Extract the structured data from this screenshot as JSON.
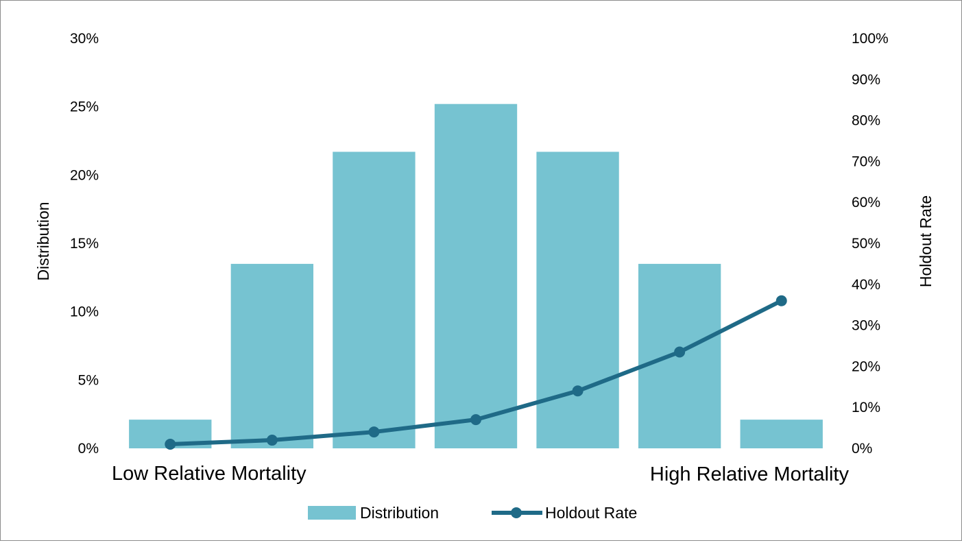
{
  "chart_data": {
    "type": "bar",
    "title": "",
    "categories": [
      "Low Relative Mortality",
      "",
      "",
      "",
      "",
      "",
      "High Relative Mortality"
    ],
    "series": [
      {
        "name": "Distribution",
        "type": "bar",
        "axis": "left",
        "values": [
          0.021,
          0.135,
          0.217,
          0.252,
          0.217,
          0.135,
          0.021
        ]
      },
      {
        "name": "Holdout Rate",
        "type": "line",
        "axis": "right",
        "marker": "circle",
        "values": [
          0.01,
          0.02,
          0.04,
          0.07,
          0.14,
          0.235,
          0.36
        ]
      }
    ],
    "ylabel": "Distribution",
    "ylim": [
      0,
      0.3
    ],
    "y_ticks": [
      "0%",
      "5%",
      "10%",
      "15%",
      "20%",
      "25%",
      "30%"
    ],
    "y2label": "Holdout Rate",
    "y2lim": [
      0,
      1.0
    ],
    "y2_ticks": [
      "0%",
      "10%",
      "20%",
      "30%",
      "40%",
      "50%",
      "60%",
      "70%",
      "80%",
      "90%",
      "100%"
    ],
    "x_edge_labels": {
      "left": "Low Relative Mortality",
      "right": "High Relative Mortality"
    },
    "legend": {
      "position": "bottom",
      "items": [
        {
          "label": "Distribution",
          "kind": "bar"
        },
        {
          "label": "Holdout Rate",
          "kind": "line"
        }
      ]
    },
    "grid": false,
    "colors": {
      "bar": "#76C3D1",
      "line": "#1F6A87"
    }
  }
}
